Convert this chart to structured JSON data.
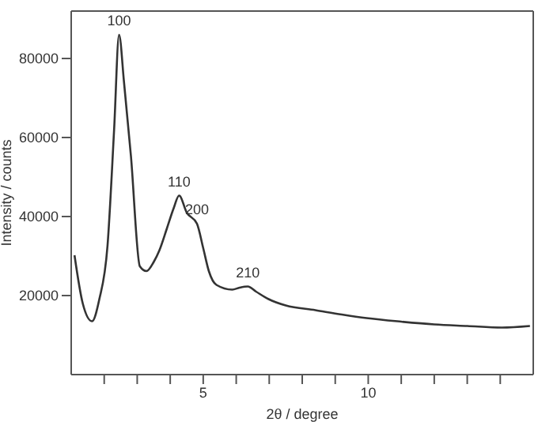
{
  "chart_data": {
    "type": "line",
    "xlabel": "2θ / degree",
    "ylabel": "Intensity / counts",
    "x": [
      1.1,
      1.35,
      1.63,
      1.85,
      2.1,
      2.3,
      2.45,
      2.6,
      2.81,
      3.08,
      3.28,
      3.5,
      3.67,
      3.9,
      4.1,
      4.27,
      4.5,
      4.81,
      5.0,
      5.17,
      5.4,
      5.88,
      6.1,
      6.35,
      6.6,
      6.98,
      7.5,
      8.4,
      9.2,
      9.95,
      11.0,
      12.0,
      13.0,
      14.05,
      14.9
    ],
    "series": [
      {
        "color": "#333333",
        "values": [
          30200,
          18000,
          13500,
          19000,
          32600,
          62000,
          86000,
          74000,
          55300,
          27400,
          26200,
          28500,
          31400,
          37000,
          42000,
          45300,
          41000,
          38200,
          32000,
          26200,
          22700,
          21500,
          22000,
          22300,
          21000,
          19100,
          17500,
          16300,
          15200,
          14300,
          13400,
          12700,
          12300,
          11900,
          12300
        ]
      }
    ],
    "xlim": [
      1,
      15
    ],
    "xticks": [
      {
        "value": 2,
        "label": null
      },
      {
        "value": 3,
        "label": null
      },
      {
        "value": 4,
        "label": null
      },
      5,
      {
        "value": 6,
        "label": null
      },
      {
        "value": 7,
        "label": null
      },
      {
        "value": 8,
        "label": null
      },
      {
        "value": 9,
        "label": null
      },
      10,
      {
        "value": 11,
        "label": null
      },
      {
        "value": 12,
        "label": null
      },
      {
        "value": 13,
        "label": null
      },
      {
        "value": 14,
        "label": null
      }
    ],
    "ylim": [
      0,
      92000
    ],
    "yticks": [
      20000,
      40000,
      60000,
      80000
    ],
    "annotations": [
      {
        "text": "100",
        "x": 2.45,
        "y": 86000
      },
      {
        "text": "110",
        "x": 4.27,
        "y": 45300
      },
      {
        "text": "200",
        "x": 4.81,
        "y": 38200
      },
      {
        "text": "210",
        "x": 6.35,
        "y": 22300
      }
    ],
    "grid": false,
    "marker": "none",
    "line_style": "solid"
  }
}
